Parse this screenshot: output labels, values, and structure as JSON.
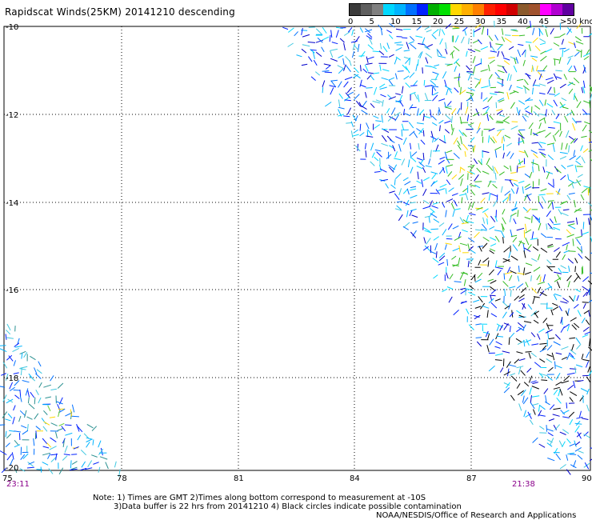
{
  "header": {
    "title": "Rapidscat Winds(25KM) 20141210 descending"
  },
  "legend": {
    "labels": [
      "0",
      "5",
      "10",
      "15",
      "20",
      "25",
      "30",
      "35",
      "40",
      "45",
      ">50 knots"
    ],
    "colors": [
      "#3a3a3a",
      "#5e5e5e",
      "#808080",
      "#00d8ff",
      "#00b4ff",
      "#0070ff",
      "#0020ff",
      "#00b000",
      "#00e000",
      "#ffd800",
      "#ffb000",
      "#ff8000",
      "#ff2000",
      "#ff0000",
      "#d00000",
      "#8b5a2b",
      "#a0522d",
      "#ff00ff",
      "#b000d0",
      "#6000a0"
    ]
  },
  "axes": {
    "y_labels": [
      "-10",
      "-12",
      "-14",
      "-16",
      "-18",
      "-20"
    ],
    "x_labels": [
      "75",
      "78",
      "81",
      "84",
      "87",
      "90"
    ]
  },
  "times": {
    "left": "23:11",
    "right": "21:38"
  },
  "notes": {
    "line1": "Note: 1) Times are GMT 2)Times along bottom correspond to measurement at -10S",
    "line2": "3)Data buffer is 22 hrs from 20141210 4) Black circles indicate possible contamination",
    "line3": "NOAA/NESDIS/Office of Research and Applications"
  }
}
